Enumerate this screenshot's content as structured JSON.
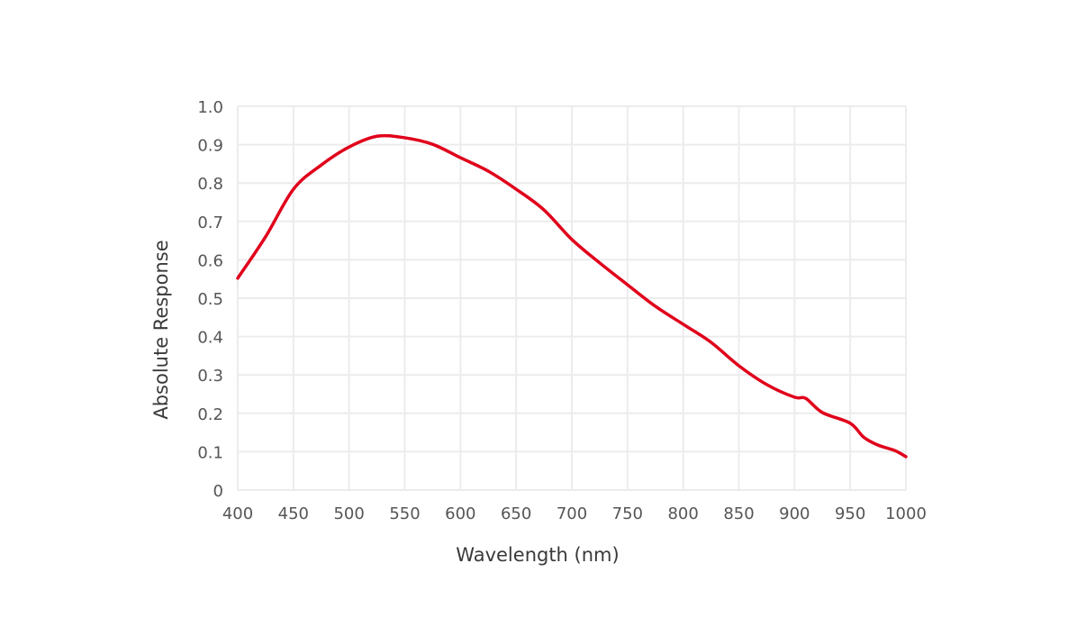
{
  "chart_data": {
    "type": "line",
    "title": "",
    "xlabel": "Wavelength (nm)",
    "ylabel": "Absolute Response",
    "xlim": [
      400,
      1000
    ],
    "ylim": [
      0,
      1.0
    ],
    "xticks": [
      "400",
      "450",
      "500",
      "550",
      "600",
      "650",
      "700",
      "750",
      "800",
      "850",
      "900",
      "950",
      "1000"
    ],
    "yticks": [
      "0",
      "0.1",
      "0.2",
      "0.3",
      "0.4",
      "0.5",
      "0.6",
      "0.7",
      "0.8",
      "0.9",
      "1.0"
    ],
    "grid": true,
    "legend": "none",
    "series": [
      {
        "color": "#e0001b",
        "x": [
          400,
          425,
          450,
          475,
          500,
          525,
          550,
          575,
          600,
          625,
          650,
          675,
          700,
          725,
          750,
          775,
          800,
          825,
          850,
          875,
          900,
          910,
          925,
          950,
          962,
          975,
          990,
          1000
        ],
        "y": [
          0.552,
          0.66,
          0.784,
          0.847,
          0.894,
          0.922,
          0.918,
          0.901,
          0.866,
          0.831,
          0.784,
          0.73,
          0.653,
          0.592,
          0.535,
          0.479,
          0.432,
          0.385,
          0.324,
          0.275,
          0.242,
          0.239,
          0.202,
          0.174,
          0.138,
          0.117,
          0.103,
          0.087
        ]
      }
    ]
  }
}
